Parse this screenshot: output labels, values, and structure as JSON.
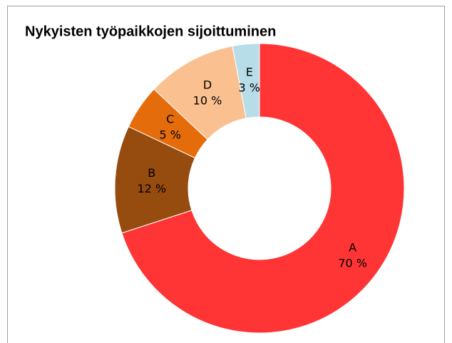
{
  "chart_data": {
    "type": "donut",
    "title": "Nykyisten työpaikkojen sijoittuminen",
    "categories": [
      "A",
      "B",
      "C",
      "D",
      "E"
    ],
    "values": [
      70,
      12,
      5,
      10,
      3
    ],
    "value_labels": [
      "70 %",
      "12 %",
      "5 %",
      "10 %",
      "3 %"
    ],
    "colors": [
      "#ff3535",
      "#964b0f",
      "#e46c0a",
      "#fac090",
      "#b7dee8"
    ]
  }
}
